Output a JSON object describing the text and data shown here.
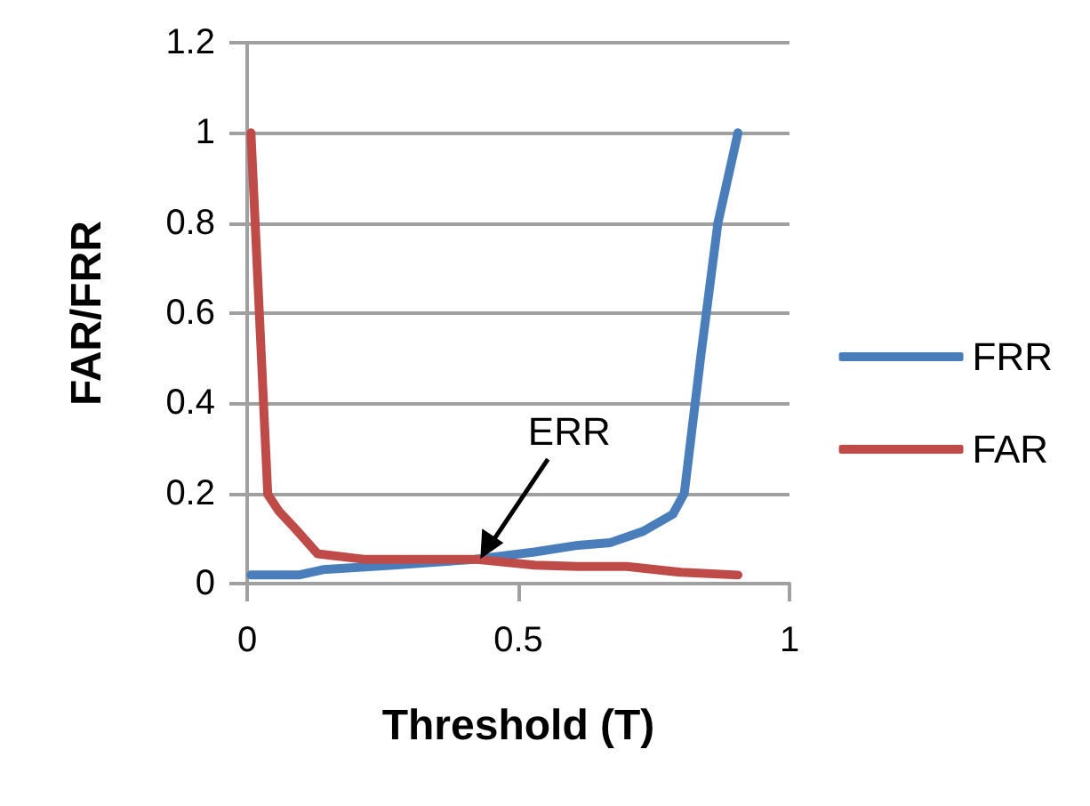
{
  "chart_data": {
    "type": "line",
    "xlabel": "Threshold (T)",
    "ylabel": "FAR/FRR",
    "xlim": [
      0,
      1
    ],
    "xticks": [
      0,
      0.5,
      1
    ],
    "ylim": [
      0,
      1.2
    ],
    "yticks": [
      0,
      0.2,
      0.4,
      0.6,
      0.8,
      1,
      1.2
    ],
    "grid": "y",
    "legend": "right",
    "marker": "none",
    "line_style": "solid",
    "annotations": [
      {
        "text": "ERR",
        "x": 0.43,
        "y": 0.055
      }
    ],
    "series": [
      {
        "name": "FRR",
        "color": "#4a7ebb",
        "x": [
          0.007,
          0.095,
          0.14,
          0.27,
          0.42,
          0.53,
          0.61,
          0.67,
          0.73,
          0.785,
          0.806,
          0.837,
          0.868,
          0.905
        ],
        "values": [
          0.019,
          0.019,
          0.031,
          0.041,
          0.054,
          0.07,
          0.085,
          0.091,
          0.116,
          0.154,
          0.2,
          0.51,
          0.8,
          1
        ]
      },
      {
        "name": "FAR",
        "color": "#be4b48",
        "x": [
          0.007,
          0.038,
          0.059,
          0.09,
          0.13,
          0.215,
          0.42,
          0.53,
          0.61,
          0.7,
          0.8,
          0.905
        ],
        "values": [
          1,
          0.198,
          0.16,
          0.12,
          0.066,
          0.054,
          0.054,
          0.041,
          0.038,
          0.038,
          0.025,
          0.019
        ]
      }
    ]
  }
}
